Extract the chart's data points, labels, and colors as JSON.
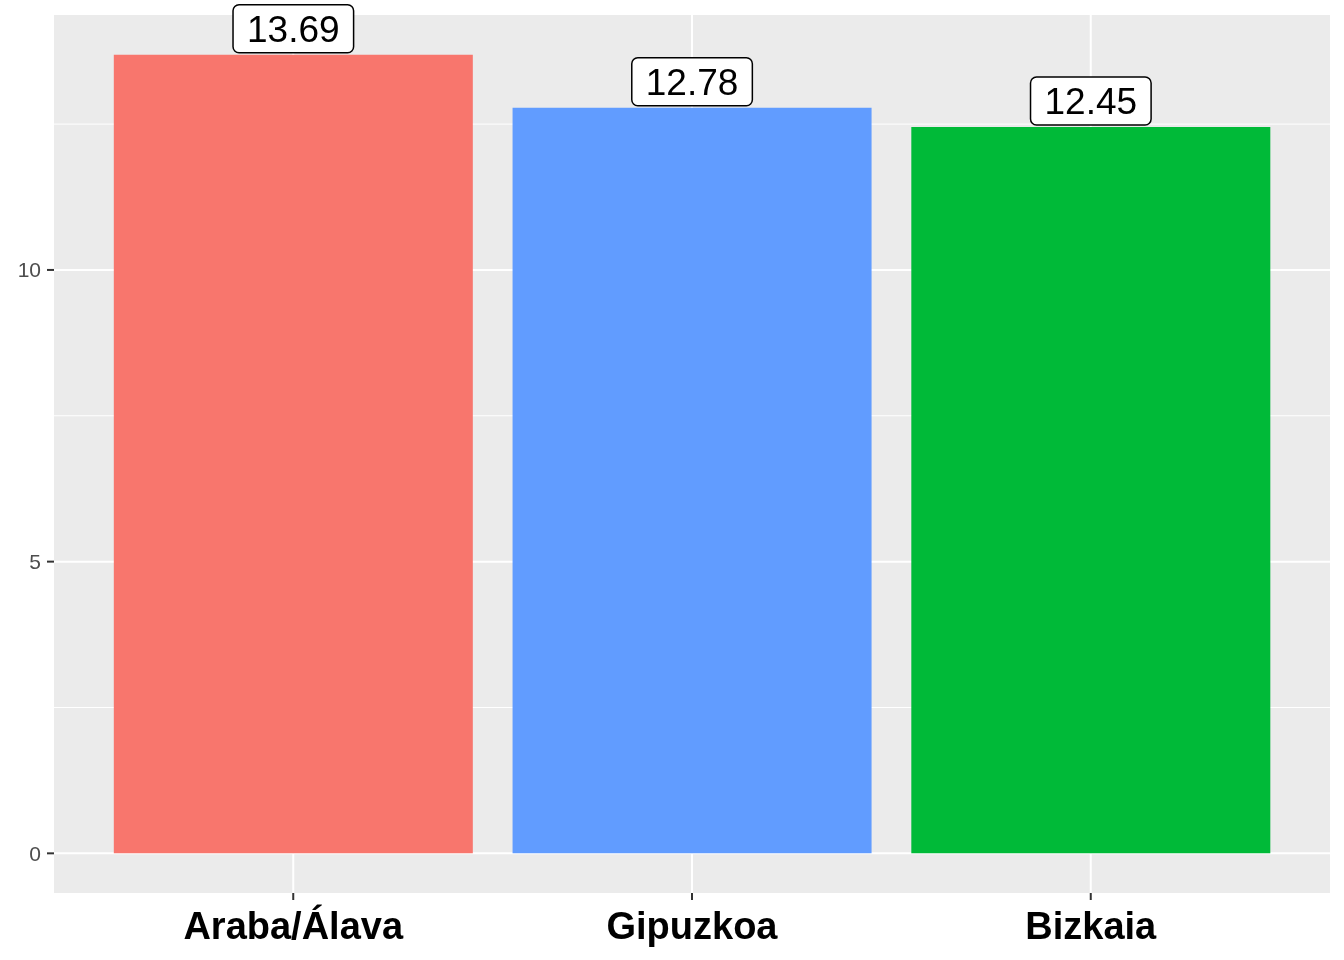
{
  "chart_data": {
    "type": "bar",
    "categories": [
      "Araba/Álava",
      "Gipuzkoa",
      "Bizkaia"
    ],
    "values": [
      13.69,
      12.78,
      12.45
    ],
    "colors": [
      "#f8766d",
      "#619cff",
      "#00ba38"
    ],
    "ylim": [
      -0.68,
      14.37
    ],
    "yticks": [
      0,
      5,
      10
    ],
    "grid": true,
    "data_labels": true
  }
}
